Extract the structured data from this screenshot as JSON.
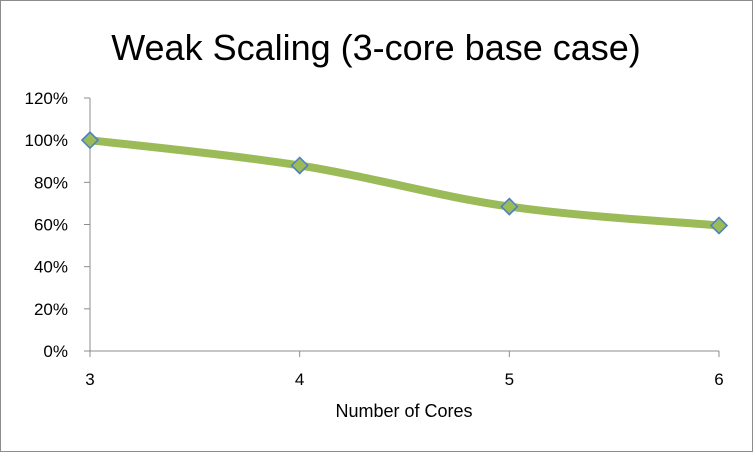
{
  "chart_data": {
    "type": "line",
    "title": "Weak Scaling (3-core base case)",
    "xlabel": "Number of Cores",
    "ylabel": "",
    "x": [
      3,
      4,
      5,
      6
    ],
    "x_tick_labels": [
      "3",
      "4",
      "5",
      "6"
    ],
    "ylim": [
      0,
      120
    ],
    "y_tick_labels": [
      "0%",
      "20%",
      "40%",
      "60%",
      "80%",
      "100%",
      "120%"
    ],
    "y_ticks": [
      0,
      20,
      40,
      60,
      80,
      100,
      120
    ],
    "series": [
      {
        "values": [
          100,
          88,
          68.5,
          59.5
        ]
      }
    ],
    "grid": false,
    "legend": "none",
    "colors": {
      "line": "#9bbb59",
      "marker_fill": "#9bbb59",
      "marker_stroke": "#4f81bd",
      "axis": "#8c8c8c"
    }
  }
}
